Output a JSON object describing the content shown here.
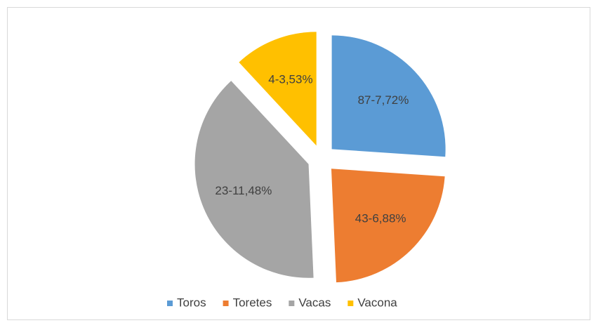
{
  "chart_data": {
    "type": "pie",
    "categories": [
      "Toros",
      "Toretes",
      "Vacas",
      "Vacona"
    ],
    "values": [
      7.72,
      6.88,
      11.48,
      3.53
    ],
    "value_labels": [
      "87-7,72%",
      "43-6,88%",
      "23-11,48%",
      "4-3,53%"
    ],
    "colors": [
      "#5b9bd5",
      "#ed7d31",
      "#a5a5a5",
      "#ffc000"
    ],
    "legend": "bottom"
  }
}
